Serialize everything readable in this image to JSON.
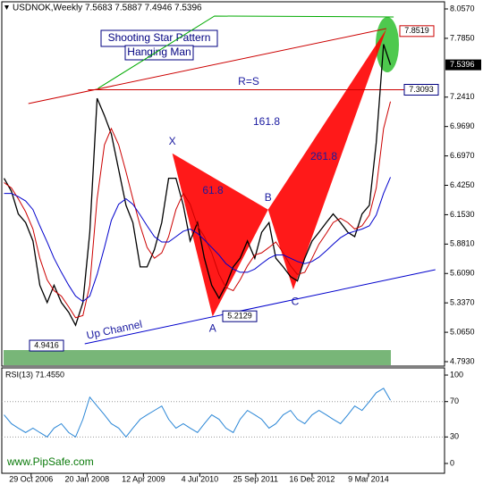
{
  "chart_data": {
    "type": "line",
    "title": "USDNOK,Weekly  7.5683 7.5887 7.4946 7.5396",
    "x": [
      2006.24,
      2006.4,
      2006.55,
      2006.71,
      2006.87,
      2007.02,
      2007.18,
      2007.33,
      2007.49,
      2007.65,
      2007.8,
      2007.96,
      2008.11,
      2008.27,
      2008.43,
      2008.58,
      2008.74,
      2008.9,
      2009.05,
      2009.21,
      2009.36,
      2009.52,
      2009.68,
      2009.83,
      2009.99,
      2010.15,
      2010.3,
      2010.46,
      2010.61,
      2010.77,
      2010.93,
      2011.08,
      2011.24,
      2011.39,
      2011.55,
      2011.71,
      2011.86,
      2012.02,
      2012.17,
      2012.33,
      2012.49,
      2012.64,
      2012.8,
      2012.96,
      2013.11,
      2013.27,
      2013.42,
      2013.58,
      2013.74,
      2013.89,
      2014.05,
      2014.21,
      2014.36,
      2014.52,
      2014.67
    ],
    "series": [
      {
        "color": "#000000",
        "values": [
          6.49,
          6.37,
          6.16,
          6.08,
          5.91,
          5.5,
          5.34,
          5.5,
          5.34,
          5.25,
          5.13,
          5.34,
          5.99,
          7.23,
          7.07,
          6.9,
          6.57,
          6.24,
          6.08,
          5.67,
          5.67,
          5.83,
          6.08,
          6.49,
          6.49,
          6.24,
          5.91,
          6.08,
          5.75,
          5.5,
          5.38,
          5.5,
          5.67,
          5.75,
          5.91,
          5.75,
          5.99,
          6.08,
          5.75,
          5.67,
          5.58,
          5.54,
          5.75,
          5.91,
          5.99,
          6.08,
          6.16,
          6.08,
          5.99,
          5.95,
          6.16,
          6.24,
          6.82,
          7.73,
          7.5396
        ]
      },
      {
        "color": "#cc0000",
        "values": [
          6.45,
          6.4,
          6.3,
          6.18,
          6.02,
          5.75,
          5.55,
          5.45,
          5.4,
          5.3,
          5.2,
          5.22,
          5.5,
          6.3,
          6.8,
          6.95,
          6.8,
          6.55,
          6.3,
          6.05,
          5.85,
          5.75,
          5.8,
          5.95,
          6.2,
          6.35,
          6.25,
          6.05,
          5.95,
          5.8,
          5.6,
          5.48,
          5.45,
          5.55,
          5.68,
          5.78,
          5.8,
          5.85,
          5.9,
          5.8,
          5.68,
          5.6,
          5.62,
          5.75,
          5.88,
          5.98,
          6.08,
          6.12,
          6.08,
          6.02,
          6.05,
          6.15,
          6.4,
          6.95,
          7.2
        ]
      },
      {
        "color": "#0000cc",
        "values": [
          6.35,
          6.35,
          6.32,
          6.28,
          6.2,
          6.05,
          5.9,
          5.75,
          5.62,
          5.5,
          5.4,
          5.35,
          5.4,
          5.6,
          5.85,
          6.1,
          6.25,
          6.3,
          6.25,
          6.15,
          6.05,
          5.95,
          5.9,
          5.9,
          5.95,
          6.0,
          6.02,
          5.98,
          5.92,
          5.85,
          5.78,
          5.7,
          5.65,
          5.62,
          5.62,
          5.65,
          5.7,
          5.75,
          5.78,
          5.78,
          5.75,
          5.72,
          5.7,
          5.72,
          5.76,
          5.82,
          5.88,
          5.94,
          5.98,
          6.0,
          6.02,
          6.05,
          6.15,
          6.35,
          6.5
        ]
      }
    ],
    "xlim": [
      2006.19,
      2015.85
    ],
    "xticks": [
      {
        "value": 2006.83,
        "label": "29 Oct 2006"
      },
      {
        "value": 2008.05,
        "label": "20 Jan 2008"
      },
      {
        "value": 2009.28,
        "label": "12 Apr 2009"
      },
      {
        "value": 2010.51,
        "label": "4 Jul 2010"
      },
      {
        "value": 2011.73,
        "label": "25 Sep 2011"
      },
      {
        "value": 2012.96,
        "label": "16 Dec 2012"
      },
      {
        "value": 2014.19,
        "label": "9 Mar 2014"
      }
    ],
    "ylim": [
      4.7517,
      8.1066
    ],
    "yticks": [
      {
        "value": 8.057,
        "label": "8.0570"
      },
      {
        "value": 7.785,
        "label": "7.7850"
      },
      {
        "value": 7.241,
        "label": "7.2410"
      },
      {
        "value": 6.969,
        "label": "6.9690"
      },
      {
        "value": 6.697,
        "label": "6.6970"
      },
      {
        "value": 6.425,
        "label": "6.4250"
      },
      {
        "value": 6.153,
        "label": "6.1530"
      },
      {
        "value": 5.881,
        "label": "5.8810"
      },
      {
        "value": 5.609,
        "label": "5.6090"
      },
      {
        "value": 5.337,
        "label": "5.3370"
      },
      {
        "value": 5.065,
        "label": "5.0650"
      },
      {
        "value": 4.793,
        "label": "4.7930"
      }
    ],
    "grid": false,
    "last_price": 7.5396,
    "price_labels": [
      4.9416,
      5.2129,
      7.3093,
      7.8519
    ],
    "trendlines": [
      {
        "color": "#cc0000",
        "x": [
          2006.77,
          2014.58
        ],
        "y": [
          7.181,
          7.875
        ]
      },
      {
        "color": "#0000cc",
        "x": [
          2008.0,
          2015.65
        ],
        "y": [
          4.958,
          5.644
        ]
      },
      {
        "color": "#cc0000",
        "x": [
          2008.07,
          2015.24
        ],
        "y": [
          7.3093,
          7.3093
        ]
      },
      {
        "color": "#00aa00",
        "x": [
          2008.29,
          2010.83,
          2014.74
        ],
        "y": [
          7.322,
          7.991,
          7.983
        ]
      }
    ],
    "pattern": {
      "color": "#ff0000",
      "points": [
        {
          "label": "X",
          "x": 2009.91,
          "y": 6.72
        },
        {
          "label": "A",
          "x": 2010.79,
          "y": 5.21
        },
        {
          "label": "B",
          "x": 2012.0,
          "y": 6.2
        },
        {
          "label": "C",
          "x": 2012.55,
          "y": 5.46
        },
        {
          "label": null,
          "x": 2014.58,
          "y": 7.87
        }
      ]
    },
    "annotations": [
      "Shooting Star Pattern",
      "Hanging Man",
      "R=S",
      "161.8",
      "61.8",
      "261.8",
      "Up Channel"
    ],
    "watermark": "www.PipSafe.com",
    "rsi": {
      "title": "RSI(13) 71.4550",
      "color": "#2a86d6",
      "values": [
        55,
        45,
        40,
        35,
        40,
        35,
        30,
        40,
        45,
        35,
        30,
        50,
        75,
        65,
        55,
        45,
        40,
        30,
        40,
        50,
        55,
        60,
        65,
        50,
        40,
        45,
        40,
        35,
        45,
        55,
        50,
        40,
        35,
        50,
        60,
        55,
        50,
        40,
        45,
        55,
        60,
        50,
        45,
        55,
        60,
        55,
        50,
        45,
        55,
        65,
        60,
        70,
        80,
        85,
        71.455
      ],
      "ylim": [
        -11.1,
        108.1
      ],
      "yticks": [
        100,
        70,
        30,
        0
      ]
    }
  }
}
